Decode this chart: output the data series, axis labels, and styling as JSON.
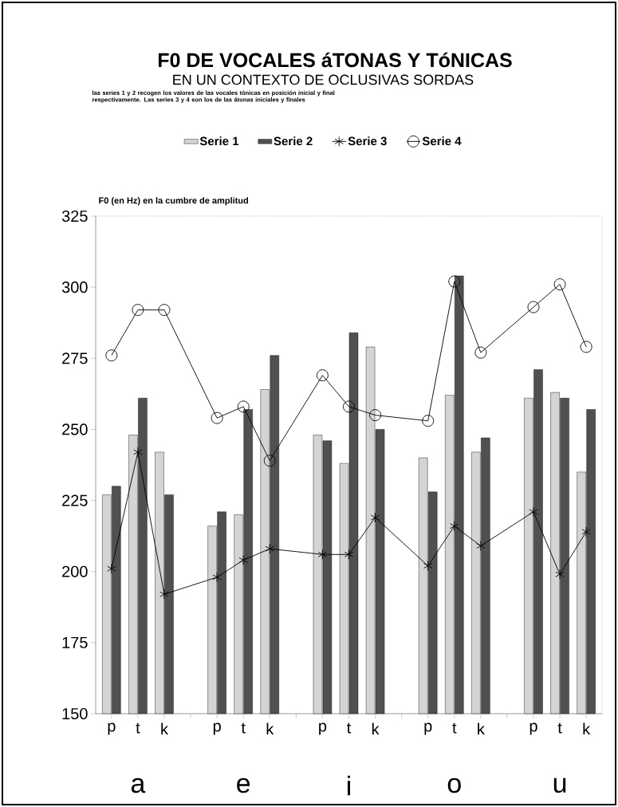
{
  "chart_data": {
    "type": "bar",
    "title": "F0 DE VOCALES áTONAS Y TóNICAS",
    "subtitle": "EN UN CONTEXTO DE OCLUSIVAS SORDAS",
    "ylabel": "F0 (en Hz) en la cumbre de amplitud",
    "annotations": [
      "las series 1 y 2 recogen los valores de las vocales tónicas en posición inicial y final respectivamente. Las series 3 y 4 son los de las átonas iniciales y finales",
      "a",
      "e",
      "i",
      "o",
      "u"
    ],
    "categories": [
      "p",
      "t",
      "k",
      null,
      "p",
      "t",
      "k",
      null,
      "p",
      "t",
      "k",
      null,
      "p",
      "t",
      "k",
      null,
      "p",
      "t",
      "k"
    ],
    "series": [
      {
        "name": "Serie 1",
        "color": "#d4d4d4",
        "values": [
          227,
          248,
          242,
          null,
          216,
          220,
          264,
          null,
          248,
          238,
          279,
          null,
          240,
          262,
          242,
          null,
          261,
          263,
          235
        ]
      },
      {
        "name": "Serie 2",
        "color": "#505050",
        "values": [
          230,
          261,
          227,
          null,
          221,
          257,
          276,
          null,
          246,
          284,
          250,
          null,
          228,
          304,
          247,
          null,
          271,
          261,
          257
        ]
      },
      {
        "name": "Serie 3",
        "type": "line",
        "marker": "cross",
        "color": "#000000",
        "values": [
          201,
          242,
          192,
          null,
          198,
          204,
          208,
          null,
          206,
          206,
          219,
          null,
          202,
          216,
          209,
          null,
          221,
          199,
          214
        ]
      },
      {
        "name": "Serie 4",
        "type": "line",
        "marker": "circle",
        "color": "#000000",
        "values": [
          276,
          292,
          292,
          null,
          254,
          258,
          239,
          null,
          269,
          258,
          255,
          null,
          253,
          302,
          277,
          null,
          293,
          301,
          279
        ]
      }
    ],
    "ylim": [
      150,
      325
    ],
    "yticks": [
      150,
      175,
      200,
      225,
      250,
      275,
      300,
      325
    ],
    "legend": "top",
    "line_style": "solid"
  }
}
